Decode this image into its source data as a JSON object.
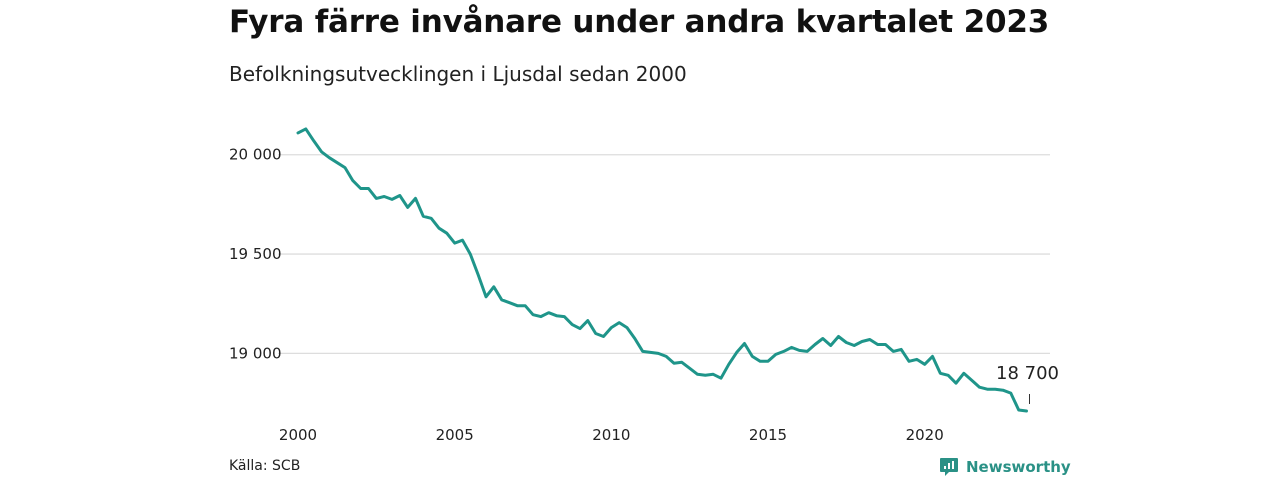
{
  "title": "Fyra färre invånare under andra kvartalet 2023",
  "subtitle": "Befolkningsutvecklingen i Ljusdal sedan 2000",
  "source": "Källa: SCB",
  "brand": "Newsworthy",
  "colors": {
    "line": "#1f958a",
    "grid": "#dddddd",
    "brand": "#2a9186"
  },
  "chart_data": {
    "type": "line",
    "x_unit": "year",
    "xlim": [
      2000,
      2024
    ],
    "ylim": [
      18700,
      20200
    ],
    "x_ticks": [
      2000,
      2005,
      2010,
      2015,
      2020
    ],
    "x_tick_labels": [
      "2000",
      "2005",
      "2010",
      "2015",
      "2020"
    ],
    "y_ticks": [
      19000,
      19500,
      20000
    ],
    "y_tick_labels": [
      "19 000",
      "19 500",
      "20 000"
    ],
    "grid": true,
    "annotation": {
      "label": "18 700",
      "x": 2023.25,
      "y": 18700
    },
    "series": [
      {
        "x": [
          2000.0,
          2000.25,
          2000.5,
          2000.75,
          2001.0,
          2001.25,
          2001.5,
          2001.75,
          2002.0,
          2002.25,
          2002.5,
          2002.75,
          2003.0,
          2003.25,
          2003.5,
          2003.75,
          2004.0,
          2004.25,
          2004.5,
          2004.75,
          2005.0,
          2005.25,
          2005.5,
          2005.75,
          2006.0,
          2006.25,
          2006.5,
          2006.75,
          2007.0,
          2007.25,
          2007.5,
          2007.75,
          2008.0,
          2008.25,
          2008.5,
          2008.75,
          2009.0,
          2009.25,
          2009.5,
          2009.75,
          2010.0,
          2010.25,
          2010.5,
          2010.75,
          2011.0,
          2011.25,
          2011.5,
          2011.75,
          2012.0,
          2012.25,
          2012.5,
          2012.75,
          2013.0,
          2013.25,
          2013.5,
          2013.75,
          2014.0,
          2014.25,
          2014.5,
          2014.75,
          2015.0,
          2015.25,
          2015.5,
          2015.75,
          2016.0,
          2016.25,
          2016.5,
          2016.75,
          2017.0,
          2017.25,
          2017.5,
          2017.75,
          2018.0,
          2018.25,
          2018.5,
          2018.75,
          2019.0,
          2019.25,
          2019.5,
          2019.75,
          2020.0,
          2020.25,
          2020.5,
          2020.75,
          2021.0,
          2021.25,
          2021.5,
          2021.75,
          2022.0,
          2022.25,
          2022.5,
          2022.75,
          2023.0,
          2023.25
        ],
        "y": [
          20110,
          20130,
          20070,
          20015,
          19985,
          19960,
          19935,
          19870,
          19830,
          19830,
          19780,
          19790,
          19775,
          19795,
          19735,
          19780,
          19690,
          19680,
          19630,
          19605,
          19555,
          19570,
          19500,
          19395,
          19285,
          19335,
          19270,
          19255,
          19240,
          19240,
          19195,
          19185,
          19205,
          19190,
          19185,
          19145,
          19125,
          19165,
          19100,
          19085,
          19130,
          19155,
          19130,
          19075,
          19010,
          19005,
          19000,
          18985,
          18950,
          18955,
          18925,
          18895,
          18890,
          18895,
          18875,
          18945,
          19005,
          19050,
          18985,
          18960,
          18960,
          18995,
          19010,
          19030,
          19015,
          19010,
          19045,
          19075,
          19040,
          19085,
          19055,
          19040,
          19060,
          19070,
          19045,
          19045,
          19010,
          19020,
          18960,
          18970,
          18945,
          18985,
          18900,
          18890,
          18850,
          18900,
          18865,
          18830,
          18820,
          18820,
          18815,
          18800,
          18715,
          18710
        ]
      }
    ]
  }
}
